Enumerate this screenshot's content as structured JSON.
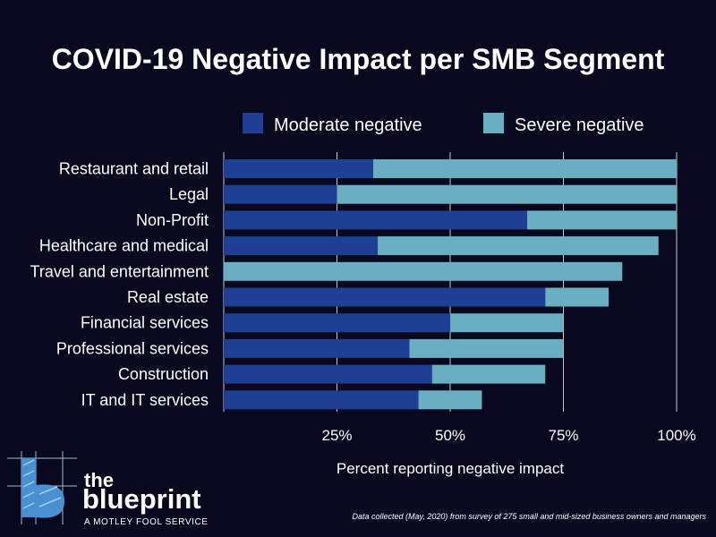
{
  "chart_data": {
    "type": "bar",
    "orientation": "horizontal",
    "stacked": true,
    "title": "COVID-19 Negative Impact per SMB Segment",
    "xlabel": "Percent reporting negative impact",
    "ylabel": "",
    "xlim": [
      0,
      100
    ],
    "xticks": [
      "25%",
      "50%",
      "75%",
      "100%"
    ],
    "xtick_values": [
      25,
      50,
      75,
      100
    ],
    "grid": true,
    "legend_position": "top-right",
    "categories": [
      "Restaurant and retail",
      "Legal",
      "Non-Profit",
      "Healthcare and medical",
      "Travel and entertainment",
      "Real estate",
      "Financial services",
      "Professional services",
      "Construction",
      "IT and IT services"
    ],
    "series": [
      {
        "name": "Moderate negative",
        "color": "#1f3f95",
        "values": [
          33,
          25,
          67,
          34,
          0,
          71,
          50,
          41,
          46,
          43
        ]
      },
      {
        "name": "Severe negative",
        "color": "#6aaec2",
        "values": [
          67,
          75,
          33,
          62,
          88,
          14,
          25,
          34,
          25,
          14
        ]
      }
    ]
  },
  "footnote": "Data collected (May, 2020) from survey of 275 small and mid-sized business owners and managers",
  "logo": {
    "line1": "the",
    "line2": "blueprint",
    "tagline": "A MOTLEY FOOL SERVICE"
  },
  "colors": {
    "background": "#08081f",
    "moderate": "#1f3f95",
    "severe": "#6aaec2",
    "grid": "#c8c8d0"
  }
}
